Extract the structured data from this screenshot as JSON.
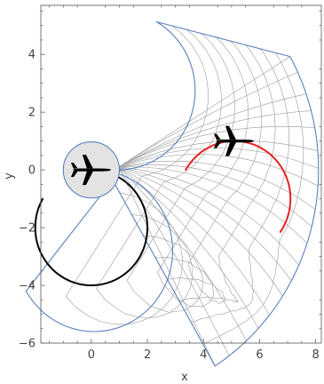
{
  "chart_data": {
    "type": "diagram",
    "xlabel": "x",
    "ylabel": "y",
    "xlim": [
      -1.8,
      8.2
    ],
    "ylim": [
      -6.0,
      5.7
    ],
    "x_ticks": [
      0,
      2,
      4,
      6,
      8
    ],
    "y_ticks": [
      -6,
      -4,
      -2,
      0,
      2,
      4
    ],
    "x_tick_labels": [
      "0",
      "2",
      "4",
      "6",
      "8"
    ],
    "y_tick_labels": [
      "−6",
      "−4",
      "−2",
      "0",
      "2",
      "4"
    ],
    "disk": {
      "center": [
        0,
        0
      ],
      "radius": 1,
      "fill": "#e3e3e3",
      "edge": "#5b7fbf"
    },
    "region": {
      "description_shape": "annular sector swept from the disk",
      "outer_arc": {
        "center": [
          0,
          0
        ],
        "radius": 8.1,
        "theta_deg": [
          -57,
          29
        ]
      },
      "inner_arc": {
        "center": [
          0.95,
          2.75
        ],
        "radius": 2.75,
        "theta_deg": [
          -88,
          60
        ]
      },
      "left_arc": {
        "center": [
          0.1,
          -2.8
        ],
        "radius": 2.8,
        "theta_deg": [
          -150,
          80
        ]
      },
      "grid_rays": 18,
      "grid_rings": 9
    },
    "paths": [
      {
        "name": "black",
        "color": "#000000",
        "center": [
          0,
          -2
        ],
        "radius": 2,
        "theta_deg": [
          -210,
          60
        ]
      },
      {
        "name": "red",
        "color": "#e8201e",
        "center": [
          5.1,
          -1
        ],
        "radius": 2,
        "theta_deg": [
          -35,
          150
        ]
      }
    ],
    "aircraft": [
      {
        "name": "plane-at-origin",
        "position": [
          0,
          0
        ],
        "heading_deg": 0
      },
      {
        "name": "plane-at-target",
        "position": [
          5.1,
          1.0
        ],
        "heading_deg": 0
      }
    ]
  }
}
